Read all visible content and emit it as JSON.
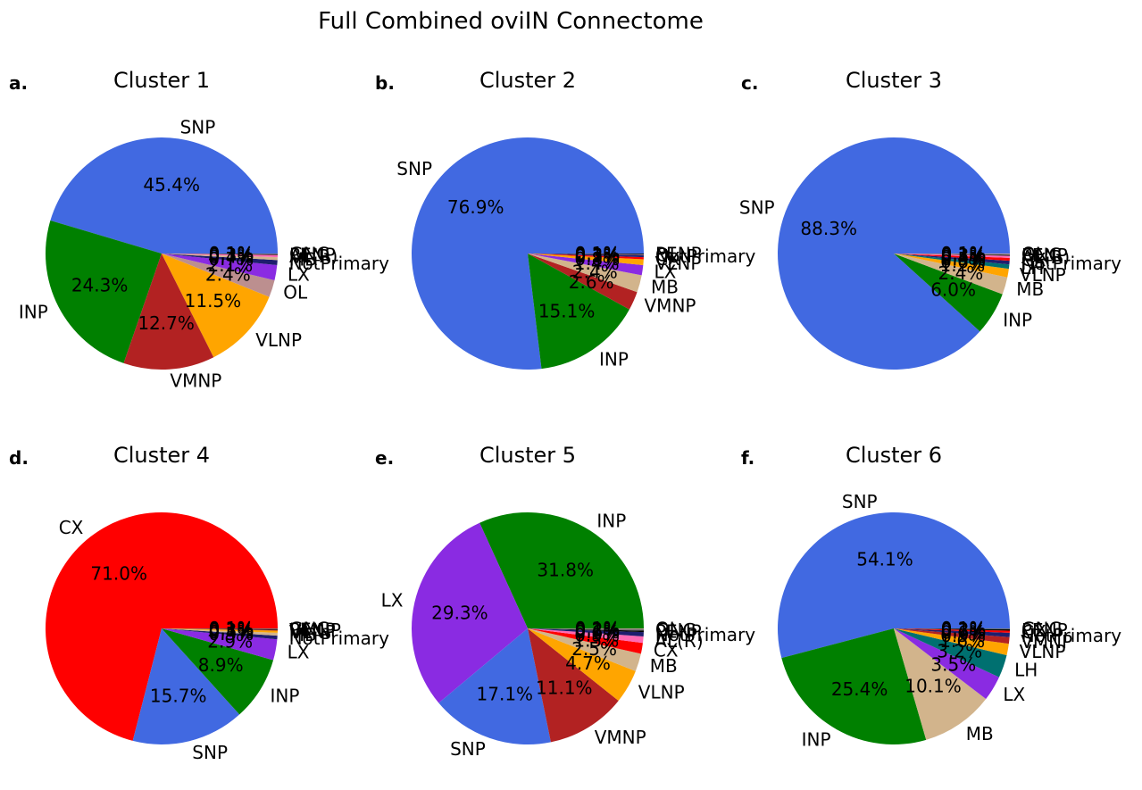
{
  "colors": {
    "SNP": "#4169e1",
    "INP": "#008000",
    "VMNP": "#b22222",
    "VLNP": "#ffa500",
    "OL": "#bc8f8f",
    "LX": "#8a2be2",
    "MB": "#d2b48c",
    "CX": "#ff0000",
    "LH": "#007070",
    "NotPrimary": "#1e1e6e",
    "AL(R)": "#ff69b4",
    "PENP": "#000000",
    "GNG": "#696969",
    "AL(L)": "#daa520"
  },
  "chart_data": [
    {
      "type": "pie",
      "panel": "a.",
      "title": "Cluster 1",
      "slices": [
        {
          "label": "SNP",
          "value": 45.4,
          "pct": "45.4%"
        },
        {
          "label": "INP",
          "value": 24.3,
          "pct": "24.3%"
        },
        {
          "label": "VMNP",
          "value": 12.7,
          "pct": "12.7%"
        },
        {
          "label": "VLNP",
          "value": 11.5,
          "pct": "11.5%"
        },
        {
          "label": "OL",
          "value": 2.4,
          "pct": "2.4%"
        },
        {
          "label": "LX",
          "value": 2.1,
          "pct": "2.1%"
        },
        {
          "label": "NotPrimary",
          "value": 0.7,
          "pct": "0.7%"
        },
        {
          "label": "MB",
          "value": 0.4,
          "pct": "0.4%"
        },
        {
          "label": "AL(R)",
          "value": 0.3,
          "pct": "0.3%"
        },
        {
          "label": "PENP",
          "value": 0.1,
          "pct": "0.1%"
        },
        {
          "label": "GNG",
          "value": 0.1,
          "pct": "0.1%"
        }
      ]
    },
    {
      "type": "pie",
      "panel": "b.",
      "title": "Cluster 2",
      "slices": [
        {
          "label": "SNP",
          "value": 76.9,
          "pct": "76.9%"
        },
        {
          "label": "INP",
          "value": 15.1,
          "pct": "15.1%"
        },
        {
          "label": "VMNP",
          "value": 2.6,
          "pct": "2.6%"
        },
        {
          "label": "MB",
          "value": 2.4,
          "pct": "2.4%"
        },
        {
          "label": "LX",
          "value": 1.4,
          "pct": "1.4%"
        },
        {
          "label": "VLNP",
          "value": 0.8,
          "pct": "0.8%"
        },
        {
          "label": "CX",
          "value": 0.3,
          "pct": "0.3%"
        },
        {
          "label": "NotPrimary",
          "value": 0.3,
          "pct": "0.3%"
        },
        {
          "label": "OL",
          "value": 0.1,
          "pct": "0.1%"
        },
        {
          "label": "PENP",
          "value": 0.1,
          "pct": "0.1%"
        }
      ]
    },
    {
      "type": "pie",
      "panel": "c.",
      "title": "Cluster 3",
      "slices": [
        {
          "label": "SNP",
          "value": 88.3,
          "pct": "88.3%"
        },
        {
          "label": "INP",
          "value": 6.0,
          "pct": "6.0%"
        },
        {
          "label": "MB",
          "value": 2.4,
          "pct": "2.4%"
        },
        {
          "label": "VLNP",
          "value": 1.2,
          "pct": "1.2%"
        },
        {
          "label": "LH",
          "value": 0.6,
          "pct": "0.6%"
        },
        {
          "label": "NotPrimary",
          "value": 0.5,
          "pct": "0.5%"
        },
        {
          "label": "CX",
          "value": 0.4,
          "pct": "0.4%"
        },
        {
          "label": "AL(R)",
          "value": 0.3,
          "pct": "0.3%"
        },
        {
          "label": "PENP",
          "value": 0.1,
          "pct": "0.1%"
        },
        {
          "label": "GNG",
          "value": 0.1,
          "pct": "0.1%"
        },
        {
          "label": "OL",
          "value": 0.1,
          "pct": "0.1%"
        }
      ]
    },
    {
      "type": "pie",
      "panel": "d.",
      "title": "Cluster 4",
      "slices": [
        {
          "label": "CX",
          "value": 71.0,
          "pct": "71.0%"
        },
        {
          "label": "SNP",
          "value": 15.7,
          "pct": "15.7%"
        },
        {
          "label": "INP",
          "value": 8.9,
          "pct": "8.9%"
        },
        {
          "label": "LX",
          "value": 2.9,
          "pct": "2.9%"
        },
        {
          "label": "NotPrimary",
          "value": 0.5,
          "pct": "0.5%"
        },
        {
          "label": "MB",
          "value": 0.4,
          "pct": "0.4%"
        },
        {
          "label": "VLNP",
          "value": 0.3,
          "pct": "0.3%"
        },
        {
          "label": "VMNP",
          "value": 0.1,
          "pct": "0.1%"
        },
        {
          "label": "PENP",
          "value": 0.1,
          "pct": "0.1%"
        },
        {
          "label": "GNG",
          "value": 0.1,
          "pct": "0.1%"
        }
      ]
    },
    {
      "type": "pie",
      "panel": "e.",
      "title": "Cluster 5",
      "slices": [
        {
          "label": "INP",
          "value": 31.8,
          "pct": "31.8%"
        },
        {
          "label": "LX",
          "value": 29.3,
          "pct": "29.3%"
        },
        {
          "label": "SNP",
          "value": 17.1,
          "pct": "17.1%"
        },
        {
          "label": "VMNP",
          "value": 11.1,
          "pct": "11.1%"
        },
        {
          "label": "VLNP",
          "value": 4.7,
          "pct": "4.7%"
        },
        {
          "label": "MB",
          "value": 2.5,
          "pct": "2.5%"
        },
        {
          "label": "CX",
          "value": 1.5,
          "pct": "1.5%"
        },
        {
          "label": "AL(R)",
          "value": 0.9,
          "pct": "0.9%"
        },
        {
          "label": "NotPrimary",
          "value": 0.6,
          "pct": "0.6%"
        },
        {
          "label": "PENP",
          "value": 0.2,
          "pct": "0.2%"
        },
        {
          "label": "GNG",
          "value": 0.2,
          "pct": "0.2%"
        },
        {
          "label": "OL",
          "value": 0.1,
          "pct": "0.1%"
        }
      ]
    },
    {
      "type": "pie",
      "panel": "f.",
      "title": "Cluster 6",
      "slices": [
        {
          "label": "SNP",
          "value": 54.1,
          "pct": "54.1%"
        },
        {
          "label": "INP",
          "value": 25.4,
          "pct": "25.4%"
        },
        {
          "label": "MB",
          "value": 10.1,
          "pct": "10.1%"
        },
        {
          "label": "LX",
          "value": 3.5,
          "pct": "3.5%"
        },
        {
          "label": "LH",
          "value": 3.2,
          "pct": "3.2%"
        },
        {
          "label": "VLNP",
          "value": 1.6,
          "pct": "1.6%"
        },
        {
          "label": "VMNP",
          "value": 0.9,
          "pct": "0.9%"
        },
        {
          "label": "NotPrimary",
          "value": 0.6,
          "pct": "0.6%"
        },
        {
          "label": "CX",
          "value": 0.3,
          "pct": "0.3%"
        },
        {
          "label": "PENP",
          "value": 0.2,
          "pct": "0.2%"
        },
        {
          "label": "GNG",
          "value": 0.1,
          "pct": "0.1%"
        }
      ]
    }
  ],
  "figure": {
    "title": "Full Combined oviIN Connectome"
  }
}
